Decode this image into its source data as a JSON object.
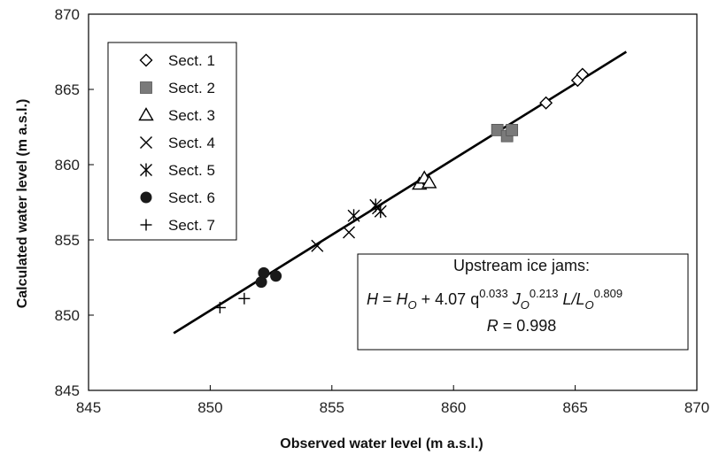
{
  "chart_data": {
    "type": "scatter",
    "xlabel": "Observed water level (m a.s.l.)",
    "ylabel": "Calculated water level (m a.s.l.)",
    "xlim": [
      845,
      870
    ],
    "ylim": [
      845,
      870
    ],
    "xticks": [
      "845",
      "850",
      "855",
      "860",
      "865",
      "870"
    ],
    "yticks": [
      "845",
      "850",
      "855",
      "860",
      "865",
      "870"
    ],
    "grid": false,
    "legend_position": "top-left",
    "series": [
      {
        "name": "Sect. 1",
        "marker": "diamond-open",
        "color": "#000000",
        "x": [
          863.8,
          865.1,
          865.3
        ],
        "y": [
          864.1,
          865.6,
          866.0
        ]
      },
      {
        "name": "Sect. 2",
        "marker": "square-filled",
        "color": "#7a7a7a",
        "x": [
          861.8,
          862.2,
          862.4
        ],
        "y": [
          862.3,
          861.9,
          862.3
        ]
      },
      {
        "name": "Sect. 3",
        "marker": "triangle-open",
        "color": "#000000",
        "x": [
          858.6,
          858.8,
          859.0
        ],
        "y": [
          858.7,
          859.1,
          858.8
        ]
      },
      {
        "name": "Sect. 4",
        "marker": "x",
        "color": "#000000",
        "x": [
          854.4,
          855.7,
          856.9
        ],
        "y": [
          854.6,
          855.5,
          857.1
        ]
      },
      {
        "name": "Sect. 5",
        "marker": "asterisk",
        "color": "#000000",
        "x": [
          855.9,
          856.8,
          857.0
        ],
        "y": [
          856.6,
          857.3,
          856.9
        ]
      },
      {
        "name": "Sect. 6",
        "marker": "circle-filled",
        "color": "#1a1a1a",
        "x": [
          852.1,
          852.2,
          852.7
        ],
        "y": [
          852.2,
          852.8,
          852.6
        ]
      },
      {
        "name": "Sect. 7",
        "marker": "plus",
        "color": "#000000",
        "x": [
          850.4,
          851.4
        ],
        "y": [
          850.5,
          851.1
        ]
      }
    ],
    "fit_line": {
      "x": [
        848.5,
        867.1
      ],
      "y": [
        848.8,
        867.5
      ]
    },
    "annotation": {
      "title": "Upstream ice jams:",
      "equation": {
        "H": "H",
        "eq": " = ",
        "Ho": "H",
        "Ho_sub": "O",
        "coef": " + 4.07 q",
        "q_exp": "0.033",
        "J": " J",
        "J_sub": "O",
        "J_exp": "0.213",
        "L": " L/L",
        "L_sub": "O",
        "L_exp": "0.809"
      },
      "r_label": "R",
      "r_value": " = 0.998"
    }
  }
}
